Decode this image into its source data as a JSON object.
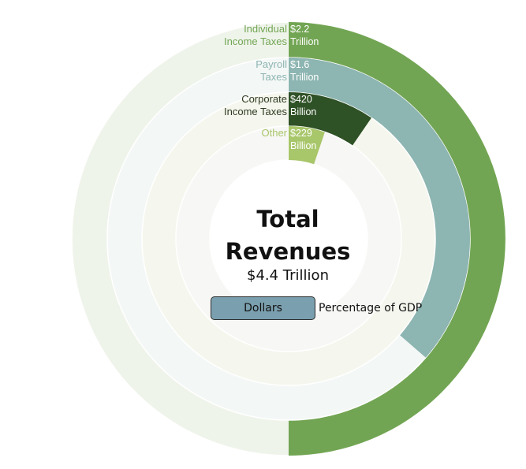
{
  "chart_data": {
    "type": "radial-bar",
    "title": "Total Revenues",
    "total": "$4.4 Trillion",
    "total_value": 4.4,
    "unit": "trillion dollars",
    "series": [
      {
        "label": "Individual Income Taxes",
        "label_lines": [
          "Individual",
          "Income Taxes"
        ],
        "value": 2.2,
        "value_lines": [
          "$2.2",
          "Trillion"
        ],
        "color": "#72a553",
        "track": "#eff4eb",
        "value_text_color": "#ffffff",
        "label_color": "#72a553"
      },
      {
        "label": "Payroll Taxes",
        "label_lines": [
          "Payroll",
          "Taxes"
        ],
        "value": 1.6,
        "value_lines": [
          "$1.6",
          "Trillion"
        ],
        "color": "#8db5b1",
        "track": "#f3f7f6",
        "value_text_color": "#ffffff",
        "label_color": "#8db5b1"
      },
      {
        "label": "Corporate Income Taxes",
        "label_lines": [
          "Corporate",
          "Income Taxes"
        ],
        "value": 0.42,
        "value_lines": [
          "$420",
          "Billion"
        ],
        "color": "#2f5126",
        "track": "#f5f7ee",
        "value_text_color": "#ffffff",
        "label_color": "#2f3a20"
      },
      {
        "label": "Other",
        "label_lines": [
          "Other"
        ],
        "value": 0.229,
        "value_lines": [
          "$229",
          "Billion"
        ],
        "color": "#a8c66a",
        "track": "#f7f7f5",
        "value_text_color": "#ffffff",
        "label_color": "#a8c66a"
      }
    ]
  },
  "toggle": {
    "options": [
      "Dollars",
      "Percentage of GDP"
    ],
    "selected": "Dollars"
  },
  "colors": {
    "toggle_active_bg": "#7a9fae"
  }
}
